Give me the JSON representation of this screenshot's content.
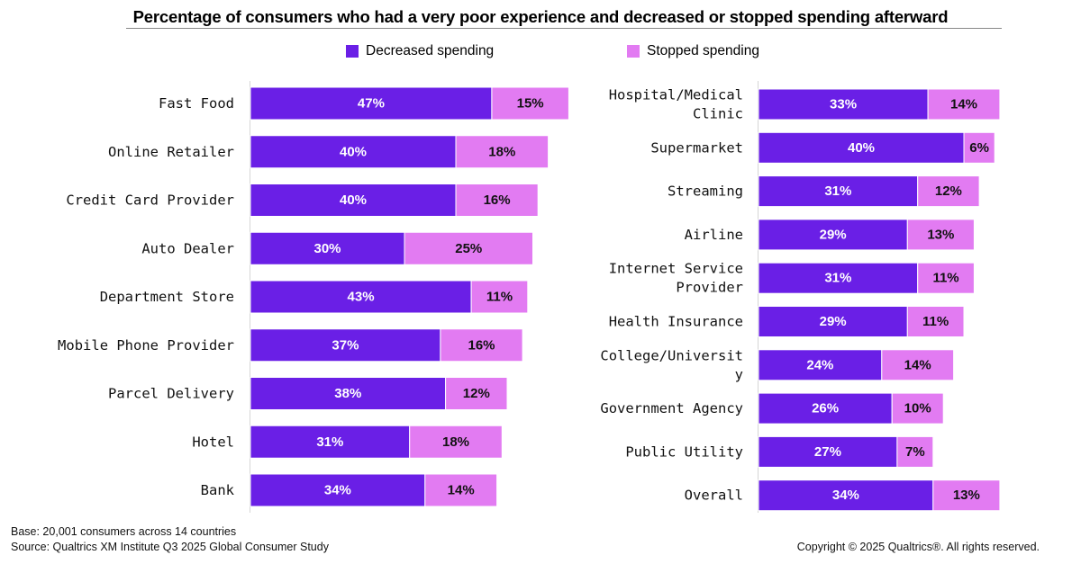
{
  "chart_data": {
    "type": "bar",
    "orientation": "horizontal",
    "stacked": true,
    "title": "Percentage of consumers who had a very poor experience and decreased or stopped spending afterward",
    "legend": [
      {
        "name": "Decreased spending",
        "color": "#6A1FE6"
      },
      {
        "name": "Stopped spending",
        "color": "#E27BF2"
      }
    ],
    "panels": [
      {
        "categories": [
          "Fast Food",
          "Online Retailer",
          "Credit Card Provider",
          "Auto Dealer",
          "Department Store",
          "Mobile Phone Provider",
          "Parcel Delivery",
          "Hotel",
          "Bank"
        ],
        "series": [
          {
            "name": "Decreased spending",
            "values": [
              47,
              40,
              40,
              30,
              43,
              37,
              38,
              31,
              34
            ]
          },
          {
            "name": "Stopped spending",
            "values": [
              15,
              18,
              16,
              25,
              11,
              16,
              12,
              18,
              14
            ]
          }
        ]
      },
      {
        "categories": [
          [
            "Hospital/Medical",
            "Clinic"
          ],
          "Supermarket",
          "Streaming",
          "Airline",
          [
            "Internet Service",
            "Provider"
          ],
          "Health Insurance",
          [
            "College/Universit",
            "y"
          ],
          "Government Agency",
          "Public Utility",
          "Overall"
        ],
        "series": [
          {
            "name": "Decreased spending",
            "values": [
              33,
              40,
              31,
              29,
              31,
              29,
              24,
              26,
              27,
              34
            ]
          },
          {
            "name": "Stopped spending",
            "values": [
              14,
              6,
              12,
              13,
              11,
              11,
              14,
              10,
              7,
              13
            ]
          }
        ]
      }
    ]
  },
  "footer": {
    "base": "Base: 20,001 consumers across 14 countries",
    "source": "Source: Qualtrics XM Institute Q3 2025 Global Consumer Study",
    "copyright": "Copyright © 2025 Qualtrics®. All rights reserved."
  }
}
